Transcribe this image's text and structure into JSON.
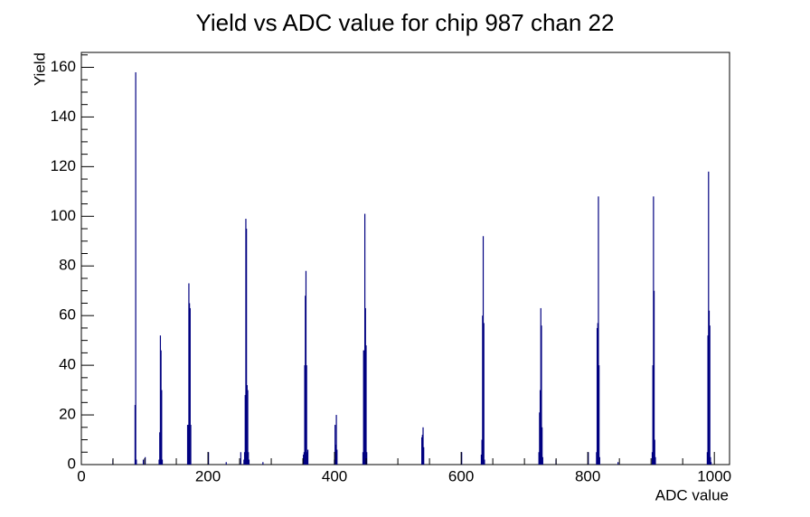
{
  "chart_data": {
    "type": "histogram",
    "title": "Yield vs ADC value for chip 987 chan 22",
    "xlabel": "ADC value",
    "ylabel": "Yield",
    "color": "#000080",
    "x": [
      49,
      84,
      85,
      86,
      97,
      100,
      122,
      123,
      124,
      125,
      126,
      127,
      167,
      168,
      169,
      170,
      171,
      172,
      200,
      228,
      251,
      256,
      257,
      258,
      259,
      260,
      261,
      262,
      263,
      264,
      286,
      350,
      351,
      352,
      353,
      354,
      355,
      356,
      357,
      399,
      400,
      401,
      402,
      403,
      444,
      445,
      446,
      447,
      448,
      449,
      450,
      537,
      538,
      539,
      540,
      600,
      631,
      632,
      633,
      634,
      635,
      636,
      722,
      723,
      724,
      725,
      726,
      727,
      728,
      749,
      800,
      813,
      814,
      815,
      816,
      817,
      818,
      847,
      901,
      902,
      903,
      904,
      905,
      906,
      988,
      989,
      990,
      991,
      992,
      993,
      994
    ],
    "values": [
      2,
      24,
      158,
      2,
      2,
      3,
      2,
      13,
      52,
      46,
      30,
      2,
      16,
      16,
      73,
      65,
      63,
      16,
      5,
      1,
      5,
      2,
      5,
      28,
      99,
      95,
      32,
      30,
      5,
      2,
      1,
      4,
      5,
      40,
      68,
      78,
      40,
      5,
      6,
      2,
      16,
      8,
      20,
      6,
      5,
      46,
      46,
      101,
      63,
      48,
      5,
      11,
      12,
      15,
      7,
      5,
      4,
      10,
      60,
      92,
      57,
      2,
      5,
      21,
      30,
      63,
      56,
      15,
      3,
      2,
      5,
      5,
      55,
      57,
      108,
      40,
      3,
      1,
      5,
      40,
      108,
      70,
      10,
      3,
      5,
      52,
      118,
      62,
      56,
      3,
      1
    ],
    "xlim": [
      0,
      1024
    ],
    "xticks": [
      0,
      200,
      400,
      600,
      800,
      1000
    ],
    "ylim": [
      0,
      166
    ],
    "yticks": [
      0,
      20,
      40,
      60,
      80,
      100,
      120,
      140,
      160
    ]
  }
}
